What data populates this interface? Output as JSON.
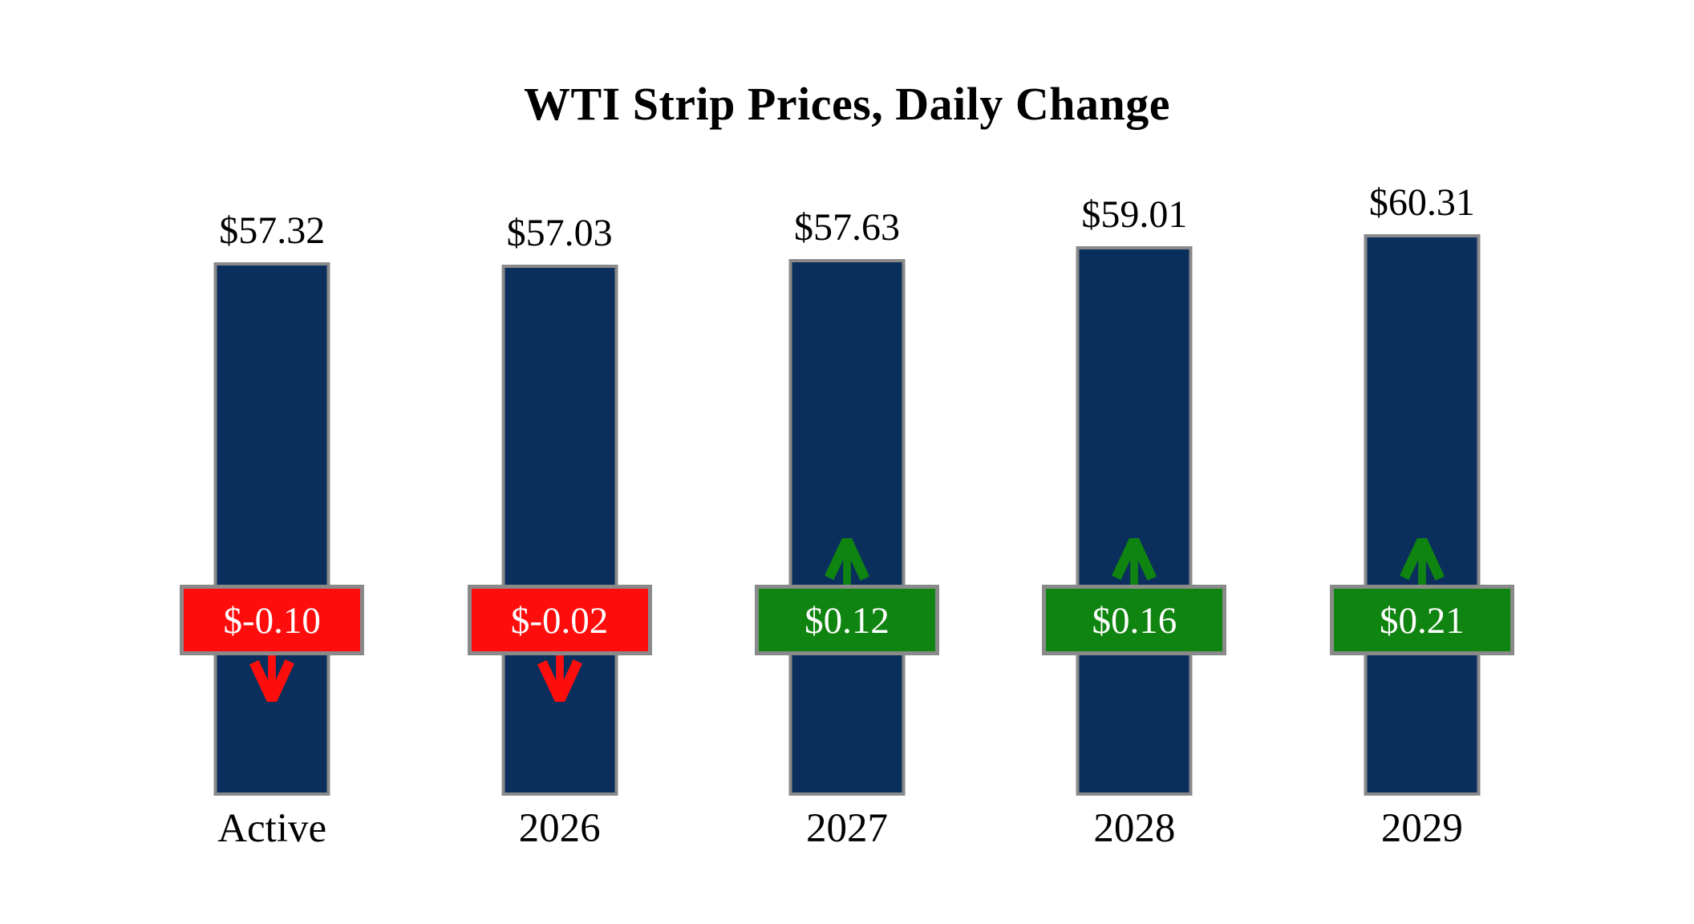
{
  "page": {
    "background": "#FFFFFF"
  },
  "chart_data": {
    "type": "bar",
    "title": "WTI Strip Prices, Daily Change",
    "categories": [
      "Active",
      "2026",
      "2027",
      "2028",
      "2029"
    ],
    "series": [
      {
        "name": "Strip Price",
        "values": [
          57.32,
          57.03,
          57.63,
          59.01,
          60.31
        ],
        "labels": [
          "$57.32",
          "$57.03",
          "$57.63",
          "$59.01",
          "$60.31"
        ]
      },
      {
        "name": "Daily Change",
        "values": [
          -0.1,
          -0.02,
          0.12,
          0.16,
          0.21
        ],
        "labels": [
          "$-0.10",
          "$-0.02",
          "$0.12",
          "$0.16",
          "$0.21"
        ]
      }
    ],
    "ylim": [
      0,
      60.31
    ],
    "grid": false,
    "legend": "none",
    "layout_hint": "column chart, value labels above bars, change badges overlaid mid-bar with direction arrows",
    "colors": {
      "bar": "#0A2F5C",
      "negative": "#FE0D0D",
      "positive": "#108410",
      "border": "#8A8A8A",
      "price_label": "#000000",
      "badge_text": "#FFFFFF"
    }
  }
}
